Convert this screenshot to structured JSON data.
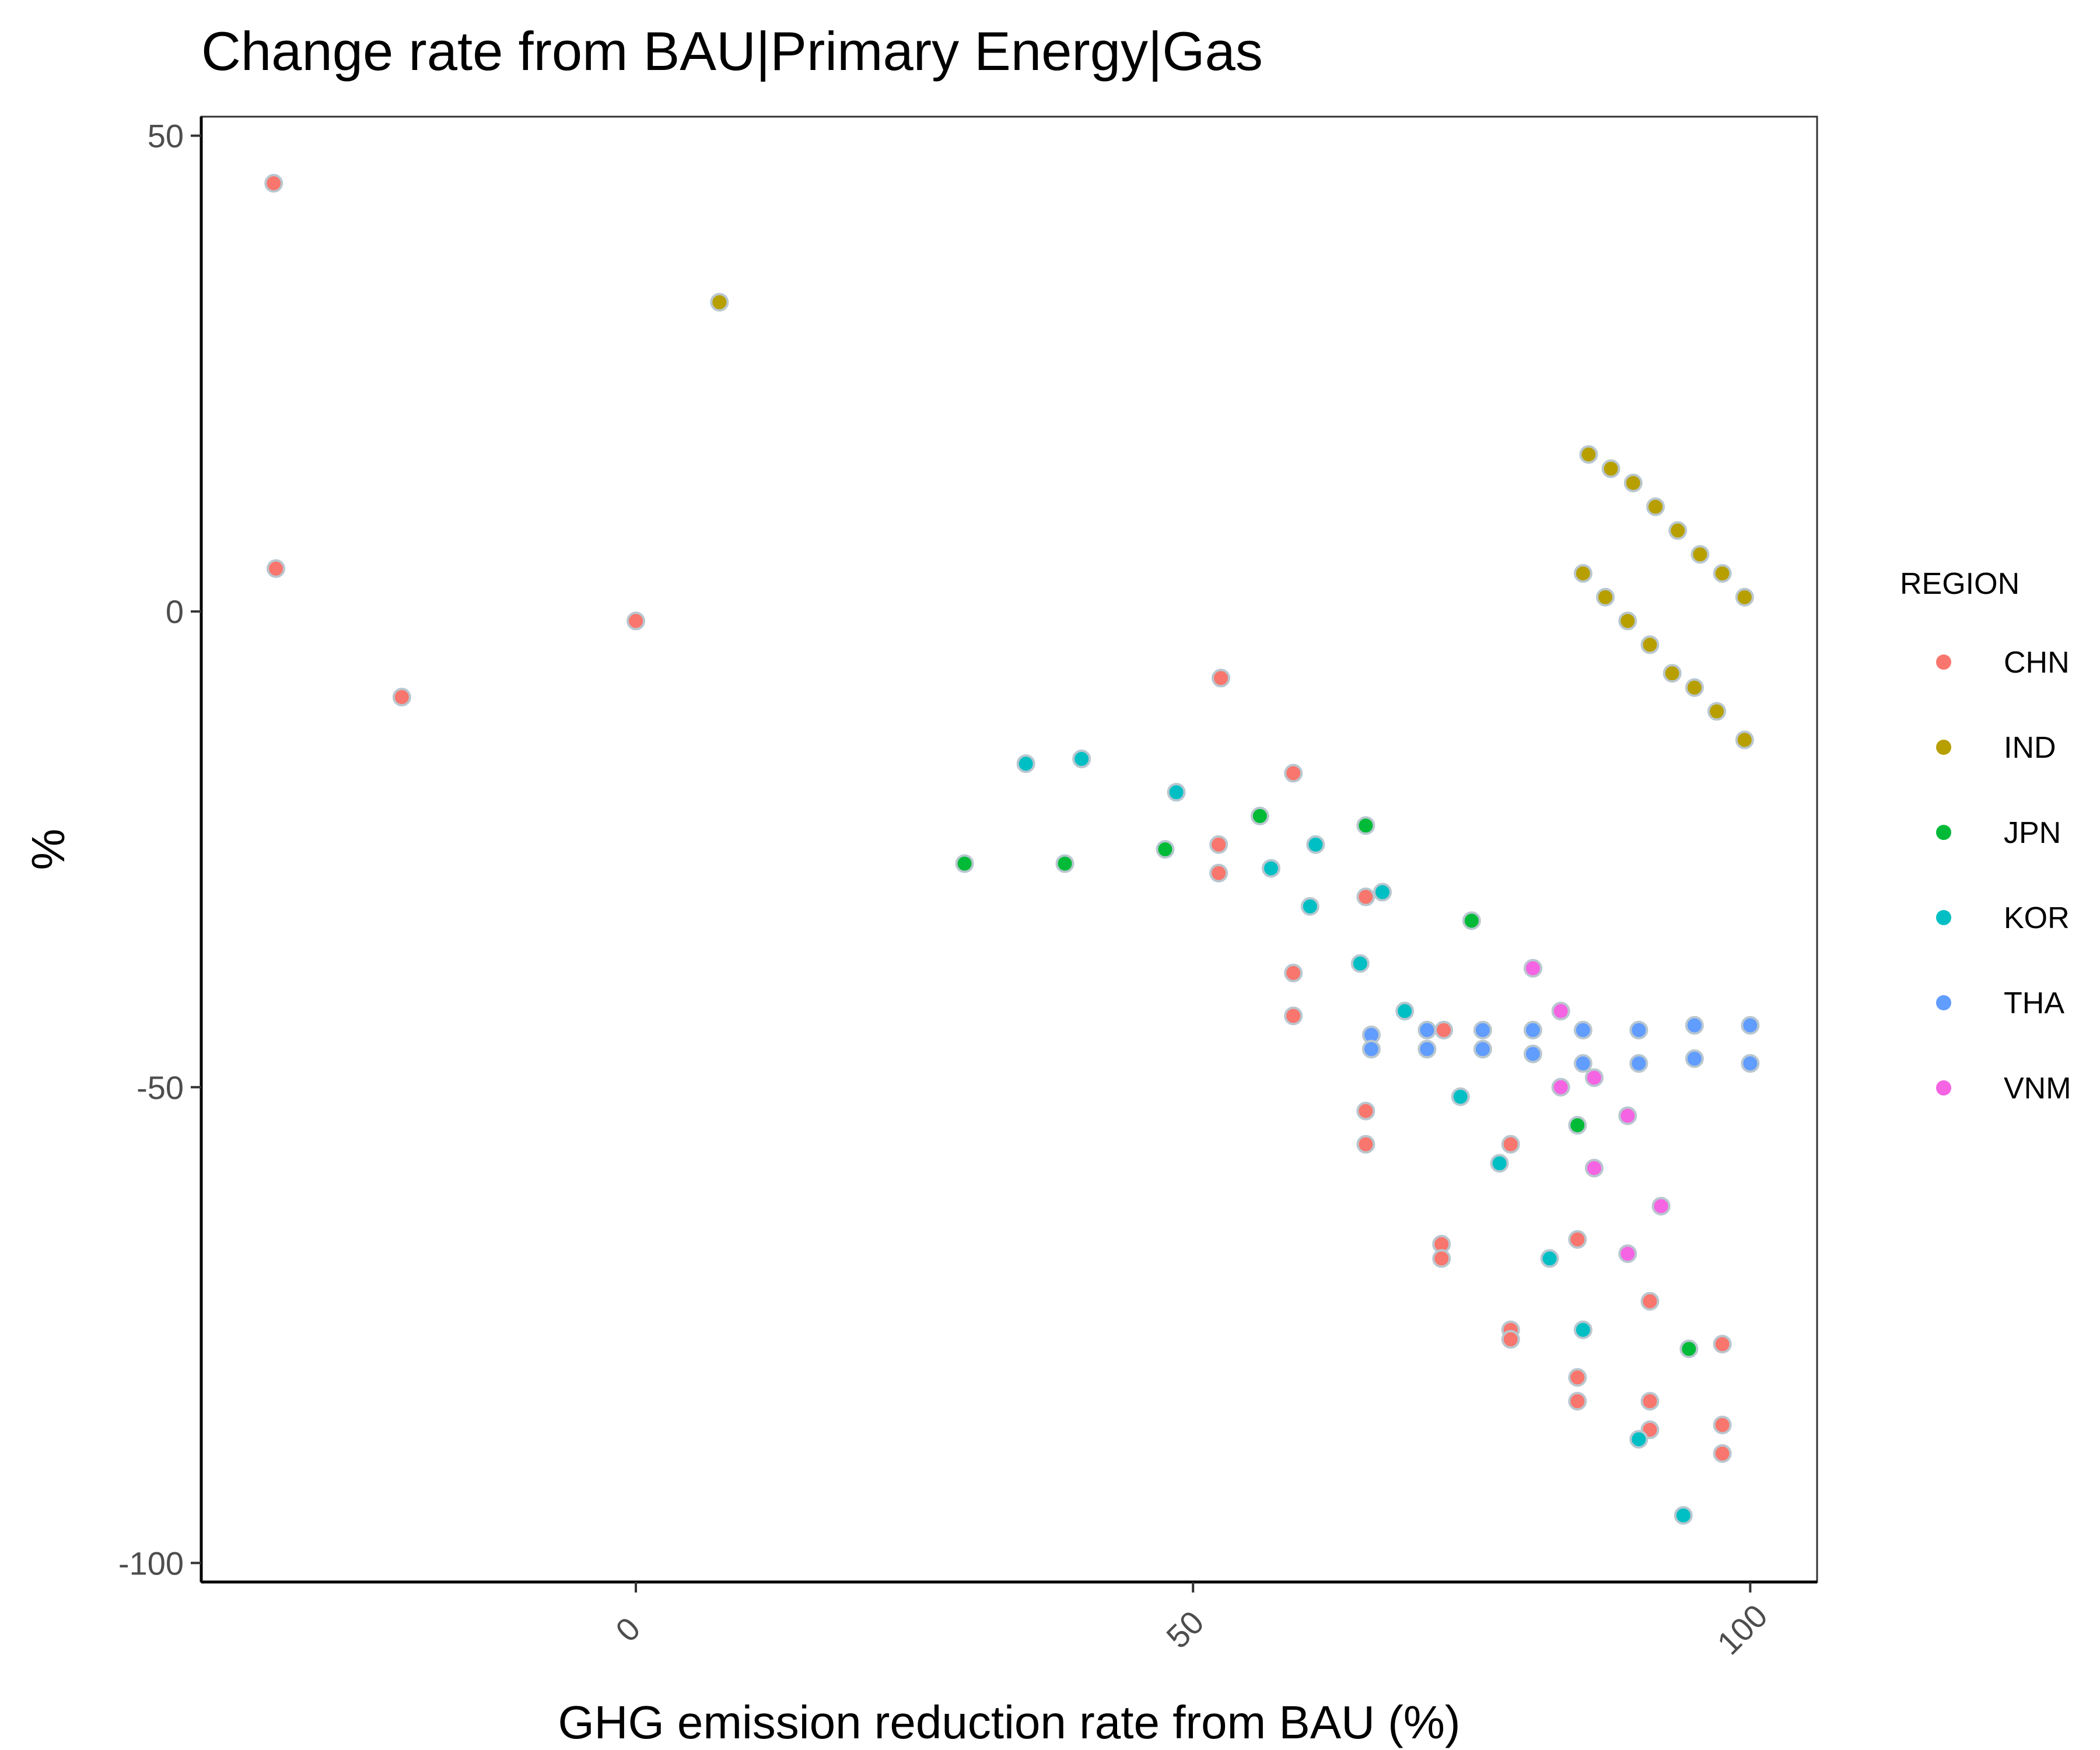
{
  "chart_data": {
    "type": "scatter",
    "title": "Change rate from BAU|Primary Energy|Gas",
    "xlabel": "GHG emission reduction rate from BAU (%)",
    "ylabel": "%",
    "xlim": [
      -39,
      106
    ],
    "ylim": [
      -102,
      52
    ],
    "x_ticks": [
      0,
      50,
      100
    ],
    "y_ticks": [
      50,
      0,
      -50,
      -100
    ],
    "x_tick_labels": [
      "0",
      "50",
      "100"
    ],
    "y_tick_labels": [
      "50",
      "0",
      "-50",
      "-100"
    ],
    "grid": false,
    "legend": {
      "title": "REGION",
      "position": "right"
    },
    "series": [
      {
        "name": "CHN",
        "color": "#F8766D",
        "points": [
          [
            -32.5,
            45
          ],
          [
            -32.3,
            4.5
          ],
          [
            -21,
            -9
          ],
          [
            0,
            -1
          ],
          [
            52.5,
            -7
          ],
          [
            52.3,
            -24.5
          ],
          [
            52.3,
            -27.5
          ],
          [
            59,
            -17
          ],
          [
            59,
            -38
          ],
          [
            59,
            -42.5
          ],
          [
            65.5,
            -30
          ],
          [
            65.5,
            -52.5
          ],
          [
            65.5,
            -56
          ],
          [
            72.5,
            -44
          ],
          [
            72.3,
            -66.5
          ],
          [
            72.3,
            -68
          ],
          [
            78.5,
            -56
          ],
          [
            78.5,
            -75.5
          ],
          [
            78.5,
            -76.5
          ],
          [
            84.5,
            -66
          ],
          [
            84.5,
            -80.5
          ],
          [
            84.5,
            -83
          ],
          [
            91,
            -72.5
          ],
          [
            91,
            -83
          ],
          [
            91,
            -86
          ],
          [
            97.5,
            -77
          ],
          [
            97.5,
            -85.5
          ],
          [
            97.5,
            -88.5
          ]
        ]
      },
      {
        "name": "IND",
        "color": "#B79F00",
        "points": [
          [
            7.5,
            32.5
          ],
          [
            85.5,
            16.5
          ],
          [
            87.5,
            15
          ],
          [
            89.5,
            13.5
          ],
          [
            91.5,
            11
          ],
          [
            93.5,
            8.5
          ],
          [
            95.5,
            6
          ],
          [
            97.5,
            4
          ],
          [
            99.5,
            1.5
          ],
          [
            85,
            4
          ],
          [
            87,
            1.5
          ],
          [
            89,
            -1
          ],
          [
            91,
            -3.5
          ],
          [
            93,
            -6.5
          ],
          [
            95,
            -8
          ],
          [
            97,
            -10.5
          ],
          [
            99.5,
            -13.5
          ]
        ]
      },
      {
        "name": "JPN",
        "color": "#00BA38",
        "points": [
          [
            29.5,
            -26.5
          ],
          [
            38.5,
            -26.5
          ],
          [
            47.5,
            -25
          ],
          [
            56,
            -21.5
          ],
          [
            65.5,
            -22.5
          ],
          [
            75,
            -32.5
          ],
          [
            84.5,
            -54
          ],
          [
            94.5,
            -77.5
          ]
        ]
      },
      {
        "name": "KOR",
        "color": "#00BFC4",
        "points": [
          [
            35,
            -16
          ],
          [
            40,
            -15.5
          ],
          [
            48.5,
            -19
          ],
          [
            57,
            -27
          ],
          [
            60.5,
            -31
          ],
          [
            61,
            -24.5
          ],
          [
            65,
            -37
          ],
          [
            67,
            -29.5
          ],
          [
            69,
            -42
          ],
          [
            74,
            -51
          ],
          [
            77.5,
            -58
          ],
          [
            82,
            -68
          ],
          [
            85,
            -75.5
          ],
          [
            90,
            -87
          ],
          [
            94,
            -95
          ]
        ]
      },
      {
        "name": "THA",
        "color": "#619CFF",
        "points": [
          [
            66,
            -44.5
          ],
          [
            66,
            -46
          ],
          [
            71,
            -44
          ],
          [
            71,
            -46
          ],
          [
            76,
            -44
          ],
          [
            76,
            -46
          ],
          [
            80.5,
            -44
          ],
          [
            80.5,
            -46.5
          ],
          [
            85,
            -44
          ],
          [
            85,
            -47.5
          ],
          [
            90,
            -44
          ],
          [
            90,
            -47.5
          ],
          [
            95,
            -43.5
          ],
          [
            95,
            -47
          ],
          [
            100,
            -43.5
          ],
          [
            100,
            -47.5
          ]
        ]
      },
      {
        "name": "VNM",
        "color": "#F564E3",
        "points": [
          [
            80.5,
            -37.5
          ],
          [
            83,
            -42
          ],
          [
            83,
            -50
          ],
          [
            86,
            -49
          ],
          [
            86,
            -58.5
          ],
          [
            89,
            -53
          ],
          [
            89,
            -67.5
          ],
          [
            92,
            -62.5
          ]
        ]
      }
    ]
  }
}
